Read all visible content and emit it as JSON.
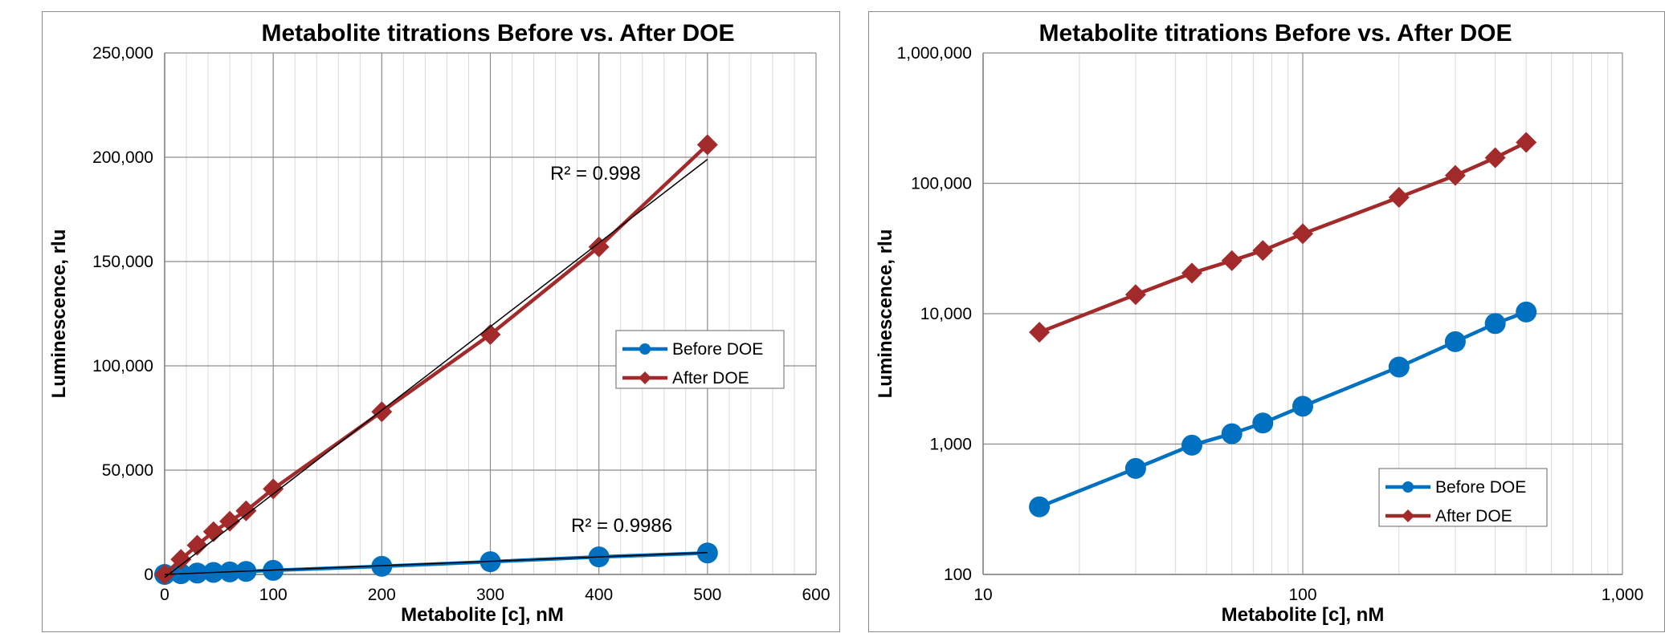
{
  "chart_data": [
    {
      "type": "scatter",
      "title": "Metabolite titrations Before vs. After DOE",
      "xlabel": "Metabolite [c], nM",
      "ylabel": "Luminescence, rlu",
      "xlim": [
        0,
        600
      ],
      "ylim": [
        0,
        250000
      ],
      "x_scale": "linear",
      "y_scale": "linear",
      "x_ticks": [
        0,
        100,
        200,
        300,
        400,
        500,
        600
      ],
      "y_ticks": [
        0,
        50000,
        100000,
        150000,
        200000,
        250000
      ],
      "x_tick_labels": [
        "0",
        "100",
        "200",
        "300",
        "400",
        "500",
        "600"
      ],
      "y_tick_labels": [
        "0",
        "50,000",
        "100,000",
        "150,000",
        "200,000",
        "250,000"
      ],
      "grid": true,
      "legend_position": "right",
      "series": [
        {
          "name": "Before DOE",
          "color": "#0070C0",
          "marker": "circle",
          "x": [
            0,
            15,
            30,
            45,
            60,
            75,
            100,
            200,
            300,
            400,
            500
          ],
          "y": [
            0,
            330,
            650,
            980,
            1200,
            1450,
            1950,
            3900,
            6100,
            8400,
            10300
          ],
          "trendline_r2_label": "R² = 0.9986",
          "trendline": {
            "x": [
              0,
              500
            ],
            "y": [
              0,
              10500
            ]
          }
        },
        {
          "name": "After DOE",
          "color": "#A32A2A",
          "marker": "diamond",
          "x": [
            0,
            15,
            30,
            45,
            60,
            75,
            100,
            200,
            300,
            400,
            500
          ],
          "y": [
            0,
            7200,
            14000,
            20500,
            25500,
            30500,
            41000,
            78000,
            115000,
            157000,
            206000
          ],
          "trendline_r2_label": "R² = 0.998",
          "trendline": {
            "x": [
              0,
              500
            ],
            "y": [
              -1500,
              199000
            ]
          }
        }
      ]
    },
    {
      "type": "scatter",
      "title": "Metabolite titrations Before vs. After DOE",
      "xlabel": "Metabolite [c], nM",
      "ylabel": "Luminescence, rlu",
      "xlim": [
        10,
        1000
      ],
      "ylim": [
        100,
        1000000
      ],
      "x_scale": "log",
      "y_scale": "log",
      "x_ticks": [
        10,
        100,
        1000
      ],
      "y_ticks": [
        100,
        1000,
        10000,
        100000,
        1000000
      ],
      "x_tick_labels": [
        "10",
        "100",
        "1,000"
      ],
      "y_tick_labels": [
        "100",
        "1,000",
        "10,000",
        "100,000",
        "1,000,000"
      ],
      "grid": true,
      "legend_position": "bottom-right",
      "series": [
        {
          "name": "Before DOE",
          "color": "#0070C0",
          "marker": "circle",
          "x": [
            15,
            30,
            45,
            60,
            75,
            100,
            200,
            300,
            400,
            500
          ],
          "y": [
            330,
            650,
            980,
            1200,
            1450,
            1950,
            3900,
            6100,
            8400,
            10300
          ]
        },
        {
          "name": "After DOE",
          "color": "#A32A2A",
          "marker": "diamond",
          "x": [
            15,
            30,
            45,
            60,
            75,
            100,
            200,
            300,
            400,
            500
          ],
          "y": [
            7200,
            14000,
            20500,
            25500,
            30500,
            41000,
            78000,
            115000,
            157000,
            206000
          ]
        }
      ]
    }
  ]
}
